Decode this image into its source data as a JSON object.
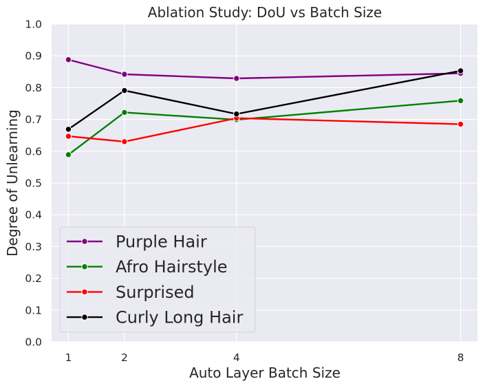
{
  "chart_data": {
    "type": "line",
    "title": "Ablation Study: DoU vs Batch Size",
    "xlabel": "Auto Layer Batch Size",
    "ylabel": "Degree of Unlearning",
    "x": [
      1,
      2,
      4,
      8
    ],
    "xlim": [
      0.7,
      8.3
    ],
    "ylim": [
      0.0,
      1.0
    ],
    "yticks": [
      "0.0",
      "0.1",
      "0.2",
      "0.3",
      "0.4",
      "0.5",
      "0.6",
      "0.7",
      "0.8",
      "0.9",
      "1.0"
    ],
    "xticks": [
      "1",
      "2",
      "4",
      "8"
    ],
    "grid": true,
    "legend_position": "lower-left",
    "series": [
      {
        "name": "Purple Hair",
        "color": "#800080",
        "values": [
          0.888,
          0.842,
          0.829,
          0.845
        ]
      },
      {
        "name": "Afro Hairstyle",
        "color": "#008000",
        "values": [
          0.589,
          0.722,
          0.699,
          0.759
        ]
      },
      {
        "name": "Surprised",
        "color": "#ff0000",
        "values": [
          0.647,
          0.63,
          0.704,
          0.685
        ]
      },
      {
        "name": "Curly Long Hair",
        "color": "#000000",
        "values": [
          0.669,
          0.791,
          0.717,
          0.853
        ]
      }
    ]
  }
}
